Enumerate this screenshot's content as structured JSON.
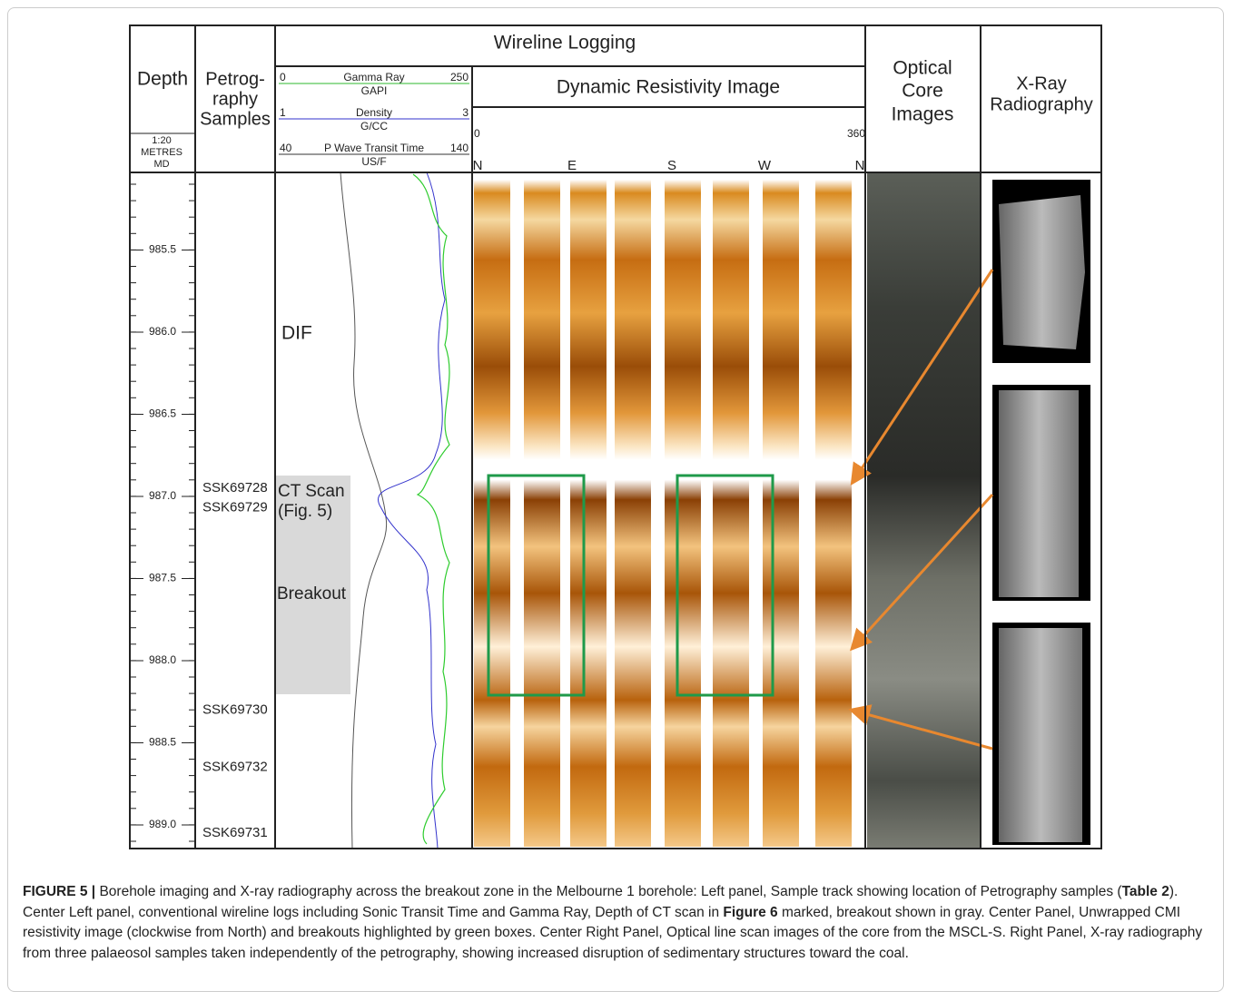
{
  "header": {
    "depth": "Depth",
    "petrography": [
      "Petrog-",
      "raphy",
      "Samples"
    ],
    "scale": [
      "1:20",
      "METRES",
      "MD"
    ],
    "wireline": "Wireline Logging",
    "resistivity": "Dynamic Resistivity Image",
    "optical": [
      "Optical",
      "Core",
      "Images"
    ],
    "xray": [
      "X-Ray",
      "Radiography"
    ]
  },
  "logs": [
    {
      "min": "0",
      "name": "Gamma Ray",
      "max": "250",
      "unit": "GAPI",
      "color": "#2eb82e"
    },
    {
      "min": "1",
      "name": "Density",
      "max": "3",
      "unit": "G/CC",
      "color": "#3333cc"
    },
    {
      "min": "40",
      "name": "P Wave Transit Time",
      "max": "140",
      "unit": "US/F",
      "color": "#333333"
    }
  ],
  "resistivity_scale": {
    "min": "0",
    "max": "360",
    "directions": [
      "N",
      "E",
      "S",
      "W",
      "N"
    ]
  },
  "depth_ticks": [
    {
      "value": 985.5,
      "label": "985.5"
    },
    {
      "value": 986,
      "label": "986.0"
    },
    {
      "value": 986.5,
      "label": "986.5"
    },
    {
      "value": 987,
      "label": "987.0"
    },
    {
      "value": 987.5,
      "label": "987.5"
    },
    {
      "value": 988,
      "label": "988.0"
    },
    {
      "value": 988.5,
      "label": "988.5"
    },
    {
      "value": 989,
      "label": "989.0"
    }
  ],
  "samples": [
    {
      "label": "SSK69728",
      "depth": 986.95
    },
    {
      "label": "SSK69729",
      "depth": 987.07
    },
    {
      "label": "SSK69730",
      "depth": 988.3
    },
    {
      "label": "SSK69732",
      "depth": 988.65
    },
    {
      "label": "SSK69731",
      "depth": 989.05
    }
  ],
  "annotations": {
    "dif": "DIF",
    "ct_scan": "CT Scan",
    "fig": "(Fig. 5)",
    "breakout": "Breakout"
  },
  "caption": {
    "label": "FIGURE 5 |",
    "text_1": " Borehole imaging and X-ray radiography across the breakout zone in the Melbourne 1 borehole: Left panel, Sample track showing location of Petrography samples (",
    "ref_1": "Table 2",
    "text_2": "). Center Left panel, conventional wireline logs including Sonic Transit Time and Gamma Ray, Depth of CT scan in ",
    "ref_2": "Figure 6",
    "text_3": " marked, breakout shown in gray. Center Panel, Unwrapped CMI resistivity image (clockwise from North) and breakouts highlighted by green boxes. Center Right Panel, Optical line scan images of the core from the MSCL-S. Right Panel, X-ray radiography from three palaeosol samples taken independently of the petrography, showing increased disruption of sedimentary structures toward the coal."
  }
}
